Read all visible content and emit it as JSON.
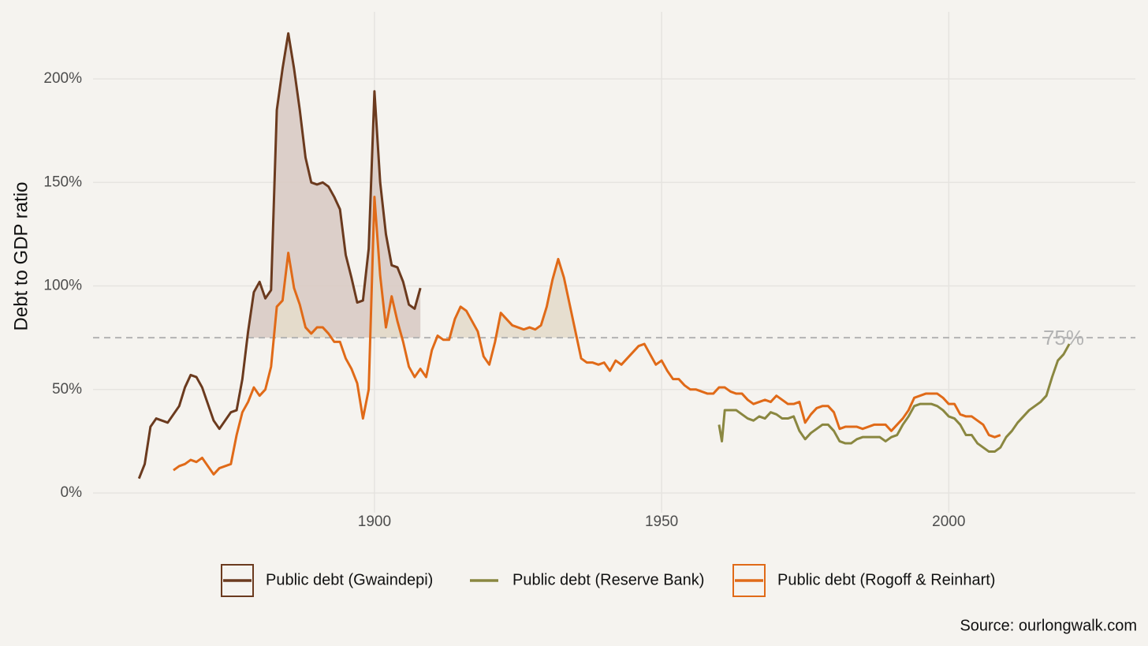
{
  "chart_data": {
    "type": "line",
    "ylabel": "Debt to GDP ratio",
    "source": "Source: ourlongwalk.com",
    "xlim": [
      1851,
      2032.5
    ],
    "xticks": [
      1900,
      1950,
      2000
    ],
    "ylim": [
      -9.5,
      232.4
    ],
    "yticks": [
      {
        "value": 0,
        "label": "0%"
      },
      {
        "value": 50,
        "label": "50%"
      },
      {
        "value": 100,
        "label": "100%"
      },
      {
        "value": 150,
        "label": "150%"
      },
      {
        "value": 200,
        "label": "200%"
      }
    ],
    "grid": true,
    "legend": "bottom",
    "threshold": {
      "value": 75,
      "label": "75%",
      "color": "#b3b3b3"
    },
    "series": [
      {
        "name": "Public debt (Gwaindepi)",
        "color": "#6b3a1e",
        "area_fill": "#d9cbc4",
        "x": [
          1859,
          1860,
          1861,
          1862,
          1863,
          1864,
          1865,
          1866,
          1867,
          1868,
          1869,
          1870,
          1871,
          1872,
          1873,
          1874,
          1875,
          1876,
          1877,
          1878,
          1879,
          1880,
          1881,
          1882,
          1883,
          1884,
          1885,
          1886,
          1887,
          1888,
          1889,
          1890,
          1891,
          1892,
          1893,
          1894,
          1895,
          1896,
          1897,
          1898,
          1899,
          1900,
          1901,
          1902,
          1903,
          1904,
          1905,
          1906,
          1907,
          1908
        ],
        "values": [
          7,
          14,
          32,
          36,
          35,
          34,
          38,
          42,
          51,
          57,
          56,
          51,
          43,
          35,
          31,
          35,
          39,
          40,
          55,
          78,
          97,
          102,
          94,
          98,
          185,
          205,
          222,
          205,
          185,
          162,
          150,
          149,
          150,
          148,
          143,
          137,
          115,
          104,
          92,
          93,
          118,
          194,
          150,
          125,
          110,
          109,
          102,
          91,
          89,
          99
        ]
      },
      {
        "name": "Public debt (Reserve Bank)",
        "color": "#8a8740",
        "x": [
          1960,
          1960.5,
          1961,
          1962,
          1963,
          1964,
          1965,
          1966,
          1967,
          1968,
          1969,
          1970,
          1971,
          1972,
          1973,
          1974,
          1975,
          1976,
          1977,
          1978,
          1979,
          1980,
          1981,
          1982,
          1983,
          1984,
          1985,
          1986,
          1987,
          1988,
          1989,
          1990,
          1991,
          1992,
          1993,
          1994,
          1995,
          1996,
          1997,
          1998,
          1999,
          2000,
          2001,
          2002,
          2003,
          2004,
          2005,
          2006,
          2007,
          2008,
          2009,
          2010,
          2011,
          2012,
          2013,
          2014,
          2015,
          2016,
          2017,
          2018,
          2019,
          2020,
          2021
        ],
        "values": [
          33,
          25,
          40,
          40,
          40,
          38,
          36,
          35,
          37,
          36,
          39,
          38,
          36,
          36,
          37,
          30,
          26,
          29,
          31,
          33,
          33,
          30,
          25,
          24,
          24,
          26,
          27,
          27,
          27,
          27,
          25,
          27,
          28,
          33,
          37,
          42,
          43,
          43,
          43,
          42,
          40,
          37,
          36,
          33,
          28,
          28,
          24,
          22,
          20,
          20,
          22,
          27,
          30,
          34,
          37,
          40,
          42,
          44,
          47,
          56,
          64,
          67,
          72
        ]
      },
      {
        "name": "Public debt (Rogoff & Reinhart)",
        "color": "#e06a18",
        "area_fill": "#e4dccb",
        "x": [
          1865,
          1866,
          1867,
          1868,
          1869,
          1870,
          1871,
          1872,
          1873,
          1874,
          1875,
          1876,
          1877,
          1878,
          1879,
          1880,
          1881,
          1882,
          1883,
          1884,
          1885,
          1886,
          1887,
          1888,
          1889,
          1890,
          1891,
          1892,
          1893,
          1894,
          1895,
          1896,
          1897,
          1898,
          1899,
          1900,
          1901,
          1902,
          1903,
          1904,
          1905,
          1906,
          1907,
          1908,
          1909,
          1910,
          1911,
          1912,
          1913,
          1914,
          1915,
          1916,
          1917,
          1918,
          1919,
          1920,
          1921,
          1922,
          1923,
          1924,
          1925,
          1926,
          1927,
          1928,
          1929,
          1930,
          1931,
          1932,
          1933,
          1934,
          1935,
          1936,
          1937,
          1938,
          1939,
          1940,
          1941,
          1942,
          1943,
          1944,
          1945,
          1946,
          1947,
          1948,
          1949,
          1950,
          1951,
          1952,
          1953,
          1954,
          1955,
          1956,
          1957,
          1958,
          1959,
          1960,
          1961,
          1962,
          1963,
          1964,
          1965,
          1966,
          1967,
          1968,
          1969,
          1970,
          1971,
          1972,
          1973,
          1974,
          1975,
          1976,
          1977,
          1978,
          1979,
          1980,
          1981,
          1982,
          1983,
          1984,
          1985,
          1986,
          1987,
          1988,
          1989,
          1990,
          1991,
          1992,
          1993,
          1994,
          1995,
          1996,
          1997,
          1998,
          1999,
          2000,
          2001,
          2002,
          2003,
          2004,
          2005,
          2006,
          2007,
          2008,
          2009
        ],
        "values": [
          11,
          13,
          14,
          16,
          15,
          17,
          13,
          9,
          12,
          13,
          14,
          28,
          39,
          44,
          51,
          47,
          50,
          61,
          90,
          93,
          116,
          99,
          91,
          80,
          77,
          80,
          80,
          77,
          73,
          73,
          65,
          60,
          53,
          36,
          50,
          143,
          105,
          80,
          95,
          83,
          73,
          61,
          56,
          60,
          56,
          69,
          76,
          74,
          74,
          84,
          90,
          88,
          83,
          78,
          66,
          62,
          73,
          87,
          84,
          81,
          80,
          79,
          80,
          79,
          81,
          90,
          103,
          113,
          104,
          91,
          78,
          65,
          63,
          63,
          62,
          63,
          59,
          64,
          62,
          65,
          68,
          71,
          72,
          67,
          62,
          64,
          59,
          55,
          55,
          52,
          50,
          50,
          49,
          48,
          48,
          51,
          51,
          49,
          48,
          48,
          45,
          43,
          44,
          45,
          44,
          47,
          45,
          43,
          43,
          44,
          34,
          38,
          41,
          42,
          42,
          39,
          31,
          32,
          32,
          32,
          31,
          32,
          33,
          33,
          33,
          30,
          33,
          36,
          40,
          46,
          47,
          48,
          48,
          48,
          46,
          43,
          43,
          38,
          37,
          37,
          35,
          33,
          28,
          27,
          28
        ]
      }
    ]
  }
}
